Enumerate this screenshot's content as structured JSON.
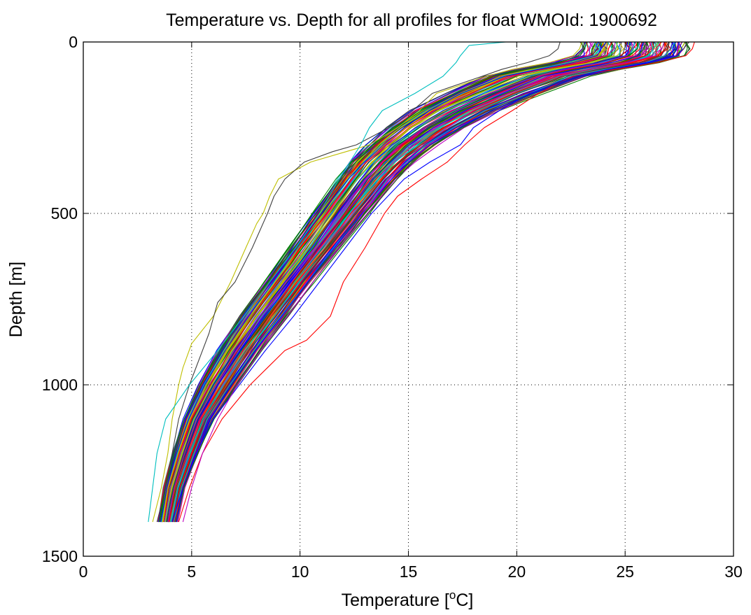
{
  "chart_data": {
    "type": "line",
    "title": "Temperature vs. Depth for all profiles for float WMOId: 1900692",
    "xlabel": "Temperature [",
    "xlabel_sup": "o",
    "xlabel_end": "C]",
    "ylabel": "Depth [m]",
    "xlim": [
      0,
      30
    ],
    "ylim": [
      0,
      1500
    ],
    "y_reversed": true,
    "grid": true,
    "legend": "none",
    "x_ticks": [
      0,
      5,
      10,
      15,
      20,
      25,
      30
    ],
    "x_tick_labels": [
      "0",
      "5",
      "10",
      "15",
      "20",
      "25",
      "30"
    ],
    "y_ticks": [
      0,
      500,
      1000,
      1500
    ],
    "y_tick_labels": [
      "0",
      "500",
      "1000",
      "1500"
    ],
    "line_colors": [
      "#0000ff",
      "#008000",
      "#ff0000",
      "#00bfbf",
      "#bf00bf",
      "#bfbf00",
      "#404040"
    ],
    "depth_levels": [
      0,
      20,
      40,
      60,
      80,
      100,
      150,
      200,
      250,
      300,
      350,
      400,
      500,
      600,
      700,
      800,
      900,
      1000,
      1100,
      1200,
      1300,
      1400
    ],
    "envelope_center": [
      25.5,
      25.5,
      25.3,
      24.2,
      22.5,
      21.0,
      19.0,
      17.2,
      15.8,
      14.7,
      13.8,
      13.1,
      11.9,
      10.7,
      9.5,
      8.3,
      7.2,
      6.2,
      5.3,
      4.7,
      4.2,
      3.9
    ],
    "envelope_spread": [
      2.5,
      2.5,
      2.5,
      2.5,
      2.5,
      2.4,
      2.2,
      2.0,
      1.8,
      1.6,
      1.5,
      1.4,
      1.3,
      1.2,
      1.1,
      1.1,
      1.0,
      0.9,
      0.7,
      0.6,
      0.5,
      0.45
    ],
    "profiles": [
      {
        "color": "#bfbf00",
        "depth": [
          0,
          20,
          40,
          60,
          80,
          100,
          150,
          200,
          250,
          300,
          350,
          400,
          450,
          500,
          530,
          600,
          700,
          800,
          880,
          950,
          1000,
          1100,
          1200,
          1300,
          1400
        ],
        "temperature": [
          23.0,
          22.9,
          22.6,
          21.5,
          19.8,
          18.6,
          16.3,
          15.5,
          14.5,
          13.2,
          10.5,
          9.0,
          8.6,
          8.3,
          8.0,
          7.5,
          6.8,
          6.0,
          5.0,
          4.6,
          4.4,
          4.1,
          3.9,
          3.6,
          3.2
        ]
      },
      {
        "color": "#404040",
        "depth": [
          0,
          20,
          40,
          60,
          80,
          100,
          150,
          200,
          250,
          300,
          320,
          350,
          400,
          450,
          500,
          600,
          700,
          760,
          850,
          950,
          1000,
          1100,
          1200,
          1300,
          1400
        ],
        "temperature": [
          22.0,
          21.9,
          21.5,
          20.5,
          19.3,
          18.4,
          16.1,
          15.2,
          14.1,
          12.6,
          11.5,
          10.2,
          9.3,
          8.8,
          8.5,
          7.8,
          7.0,
          6.2,
          5.8,
          5.2,
          4.9,
          4.4,
          4.1,
          3.8,
          3.4
        ]
      },
      {
        "color": "#00bfbf",
        "depth": [
          0,
          10,
          40,
          60,
          80,
          100,
          150,
          200,
          250,
          300,
          400,
          500,
          600,
          700,
          800,
          900,
          1000,
          1100,
          1200,
          1300,
          1400
        ],
        "temperature": [
          19.5,
          17.8,
          17.4,
          17.2,
          16.9,
          16.6,
          15.3,
          13.8,
          13.2,
          12.8,
          11.8,
          10.9,
          9.8,
          8.6,
          7.4,
          6.2,
          4.9,
          3.8,
          3.4,
          3.2,
          3.0
        ]
      },
      {
        "color": "#ff0000",
        "depth": [
          0,
          20,
          40,
          60,
          80,
          100,
          150,
          200,
          250,
          300,
          350,
          400,
          450,
          500,
          600,
          700,
          800,
          870,
          900,
          1000,
          1100,
          1200,
          1300,
          1400
        ],
        "temperature": [
          28.2,
          28.1,
          27.8,
          26.5,
          24.5,
          22.6,
          21.0,
          19.8,
          18.5,
          17.6,
          16.8,
          15.6,
          14.5,
          13.9,
          13.0,
          12.0,
          11.4,
          10.3,
          9.3,
          7.7,
          6.4,
          5.5,
          4.9,
          4.4
        ]
      },
      {
        "color": "#0000ff",
        "depth": [
          0,
          20,
          40,
          60,
          80,
          100,
          150,
          200,
          250,
          300,
          350,
          400,
          500,
          600,
          700,
          800,
          900,
          1000,
          1100,
          1200,
          1300,
          1400
        ],
        "temperature": [
          27.5,
          27.4,
          27.2,
          26.0,
          24.2,
          22.8,
          20.6,
          19.2,
          18.0,
          17.4,
          16.0,
          14.8,
          13.3,
          12.1,
          10.9,
          9.7,
          8.4,
          7.2,
          6.0,
          5.2,
          4.6,
          4.1
        ]
      },
      {
        "color": "#bf00bf",
        "depth": [
          0,
          20,
          40,
          60,
          80,
          100,
          150,
          200,
          250,
          300,
          350,
          400,
          500,
          600,
          700,
          800,
          900,
          1000,
          1100,
          1200,
          1300,
          1400
        ],
        "temperature": [
          26.8,
          26.7,
          26.4,
          25.1,
          23.3,
          21.8,
          19.6,
          18.0,
          16.8,
          15.7,
          14.8,
          14.1,
          12.9,
          11.8,
          10.6,
          9.4,
          8.2,
          7.1,
          6.2,
          5.5,
          5.0,
          4.6
        ]
      }
    ]
  }
}
